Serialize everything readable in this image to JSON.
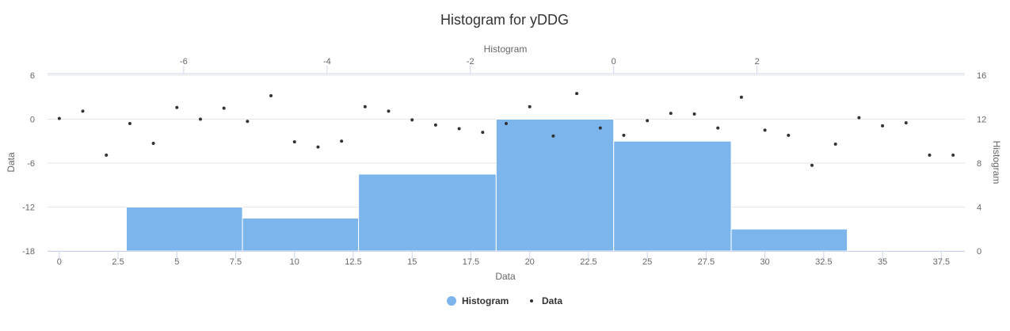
{
  "chart_data": {
    "type": "bar",
    "title": "Histogram for yDDG",
    "x_axis": {
      "title": "Data",
      "range": [
        -0.5,
        38.5
      ],
      "ticks": [
        0,
        2.5,
        5,
        7.5,
        10,
        12.5,
        15,
        17.5,
        20,
        22.5,
        25,
        27.5,
        30,
        32.5,
        35,
        37.5
      ],
      "tick_labels": [
        "0",
        "2.5",
        "5",
        "7.5",
        "10",
        "12.5",
        "15",
        "17.5",
        "20",
        "22.5",
        "25",
        "27.5",
        "30",
        "32.5",
        "35",
        "37.5"
      ]
    },
    "x_axis_top": {
      "title": "Histogram",
      "range": [
        -7.9,
        4.9
      ],
      "ticks": [
        -6,
        -4,
        -2,
        0,
        2
      ],
      "tick_labels": [
        "-6",
        "-4",
        "-2",
        "0",
        "2"
      ]
    },
    "y_axis_left": {
      "title": "Data",
      "range": [
        -18,
        6
      ],
      "ticks": [
        -18,
        -12,
        -6,
        0,
        6
      ],
      "tick_labels": [
        "-18",
        "-12",
        "-6",
        "0",
        "6"
      ]
    },
    "y_axis_right": {
      "title": "Histogram",
      "range": [
        0,
        16
      ],
      "ticks": [
        0,
        4,
        8,
        12,
        16
      ],
      "tick_labels": [
        "0",
        "4",
        "8",
        "12",
        "16"
      ]
    },
    "grid": true,
    "legend_position": "bottom-center",
    "series": [
      {
        "name": "Histogram",
        "type": "column",
        "color": "#7cb5ec",
        "bins": [
          {
            "x0": -6.8,
            "x1": -5.18,
            "count": 4
          },
          {
            "x0": -5.18,
            "x1": -3.56,
            "count": 3
          },
          {
            "x0": -3.56,
            "x1": -1.64,
            "count": 7
          },
          {
            "x0": -1.64,
            "x1": 0.0,
            "count": 12
          },
          {
            "x0": 0.0,
            "x1": 1.64,
            "count": 10
          },
          {
            "x0": 1.64,
            "x1": 3.26,
            "count": 2
          }
        ]
      },
      {
        "name": "Data",
        "type": "scatter",
        "color": "#333333",
        "x": [
          0,
          1,
          2,
          3,
          4,
          5,
          6,
          7,
          8,
          9,
          10,
          11,
          12,
          13,
          14,
          15,
          16,
          17,
          18,
          19,
          20,
          21,
          22,
          23,
          24,
          25,
          26,
          27,
          28,
          29,
          30,
          31,
          32,
          33,
          34,
          35,
          36,
          37,
          38
        ],
        "y": [
          0.1,
          1.1,
          -4.9,
          -0.6,
          -3.3,
          1.6,
          0.0,
          1.5,
          -0.3,
          3.2,
          -3.1,
          -3.8,
          -3.0,
          1.7,
          1.1,
          -0.1,
          -0.8,
          -1.3,
          -1.8,
          -0.6,
          1.7,
          -2.3,
          3.5,
          -1.2,
          -2.2,
          -0.2,
          0.8,
          0.7,
          -1.2,
          3.0,
          -1.5,
          -2.2,
          -6.3,
          -3.4,
          0.2,
          -0.9,
          -0.5,
          -4.9,
          -4.9
        ]
      }
    ]
  }
}
